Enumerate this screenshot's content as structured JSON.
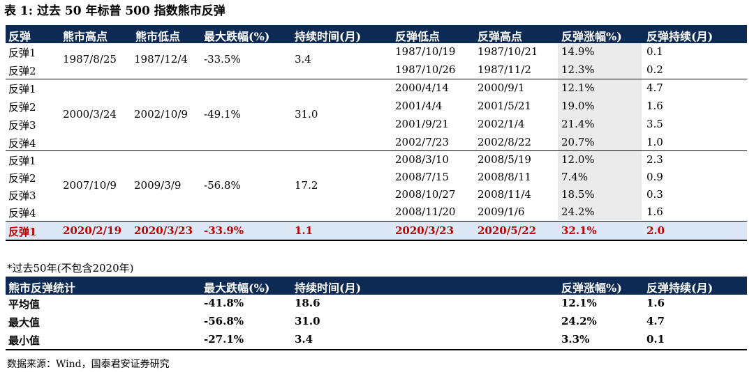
{
  "title": "表 1:  过去 50 年标普 500 指数熊市反弹",
  "main_table": {
    "headers": [
      "反弹",
      "熊市高点",
      "熊市低点",
      "最大跌幅(%)",
      "持续时间(月)",
      "反弹低点",
      "反弹高点",
      "反弹涨幅%)",
      "反弹持续(月)"
    ],
    "groups": [
      {
        "bear_high": "1987/8/25",
        "bear_low": "1987/12/4",
        "max_drop": "-33.5%",
        "duration": "3.4",
        "rows": [
          {
            "label": "反弹1",
            "low": "1987/10/19",
            "high": "1987/10/21",
            "gain": "14.9%",
            "months": "0.1"
          },
          {
            "label": "反弹2",
            "low": "1987/10/26",
            "high": "1987/11/2",
            "gain": "12.3%",
            "months": "0.2"
          }
        ]
      },
      {
        "bear_high": "2000/3/24",
        "bear_low": "2002/10/9",
        "max_drop": "-49.1%",
        "duration": "31.0",
        "rows": [
          {
            "label": "反弹1",
            "low": "2000/4/14",
            "high": "2000/9/1",
            "gain": "12.1%",
            "months": "4.7"
          },
          {
            "label": "反弹2",
            "low": "2001/4/4",
            "high": "2001/5/21",
            "gain": "19.0%",
            "months": "1.6"
          },
          {
            "label": "反弹3",
            "low": "2001/9/21",
            "high": "2002/1/4",
            "gain": "21.4%",
            "months": "3.5"
          },
          {
            "label": "反弹4",
            "low": "2002/7/23",
            "high": "2002/8/22",
            "gain": "20.7%",
            "months": "1.0"
          }
        ]
      },
      {
        "bear_high": "2007/10/9",
        "bear_low": "2009/3/9",
        "max_drop": "-56.8%",
        "duration": "17.2",
        "rows": [
          {
            "label": "反弹1",
            "low": "2008/3/10",
            "high": "2008/5/19",
            "gain": "12.0%",
            "months": "2.3"
          },
          {
            "label": "反弹2",
            "low": "2008/7/15",
            "high": "2008/8/11",
            "gain": "7.4%",
            "months": "0.9"
          },
          {
            "label": "反弹3",
            "low": "2008/10/27",
            "high": "2008/11/4",
            "gain": "18.5%",
            "months": "0.3"
          },
          {
            "label": "反弹4",
            "low": "2008/11/20",
            "high": "2009/1/6",
            "gain": "24.2%",
            "months": "1.6"
          }
        ]
      }
    ],
    "current": {
      "label": "反弹1",
      "bear_high": "2020/2/19",
      "bear_low": "2020/3/23",
      "max_drop": "-33.9%",
      "duration": "1.1",
      "low": "2020/3/23",
      "high": "2020/5/22",
      "gain": "32.1%",
      "months": "2.0"
    }
  },
  "note": "*过去50年(不包含2020年)",
  "stats_table": {
    "headers": [
      "熊市反弹统计",
      "最大跌幅(%)",
      "持续时间(月)",
      "反弹涨幅%)",
      "反弹持续(月)"
    ],
    "rows": [
      {
        "label": "平均值",
        "max_drop": "-41.8%",
        "duration": "18.6",
        "gain": "12.1%",
        "months": "1.6"
      },
      {
        "label": "最大值",
        "max_drop": "-56.8%",
        "duration": "31.0",
        "gain": "24.2%",
        "months": "4.7"
      },
      {
        "label": "最小值",
        "max_drop": "-27.1%",
        "duration": "3.4",
        "gain": "3.3%",
        "months": "0.1"
      }
    ]
  },
  "source": "数据来源：Wind，国泰君安证券研究",
  "colors": {
    "header_bg": "#0d2a55",
    "highlight_bg": "#dce8f5",
    "highlight_text": "#c00000",
    "gain_column_bg": "#ebebeb"
  }
}
